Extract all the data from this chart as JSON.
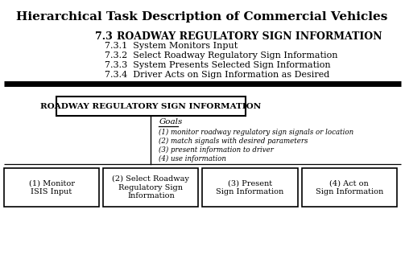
{
  "title": "Hierarchical Task Description of Commercial Vehicles",
  "section_header_num": "7.3",
  "section_header_text": "ROADWAY REGULATORY SIGN INFORMATION",
  "subitems": [
    "7.3.1  System Monitors Input",
    "7.3.2  Select Roadway Regulatory Sign Information",
    "7.3.3  System Presents Selected Sign Information",
    "7.3.4  Driver Acts on Sign Information as Desired"
  ],
  "box_main_label": "ROADWAY REGULATORY SIGN INFORMATION",
  "goals_title": "Goals",
  "goals": [
    "(1) monitor roadway regulatory sign signals or location",
    "(2) match signals with desired parameters",
    "(3) present information to driver",
    "(4) use information"
  ],
  "child_boxes": [
    "(1) Monitor\nISIS Input",
    "(2) Select Roadway\nRegulatory Sign\nInformation",
    "(3) Present\nSign Information",
    "(4) Act on\nSign Information"
  ],
  "bg_color": "#ffffff",
  "text_color": "#000000",
  "divider_color": "#000000",
  "box_edge_color": "#000000"
}
